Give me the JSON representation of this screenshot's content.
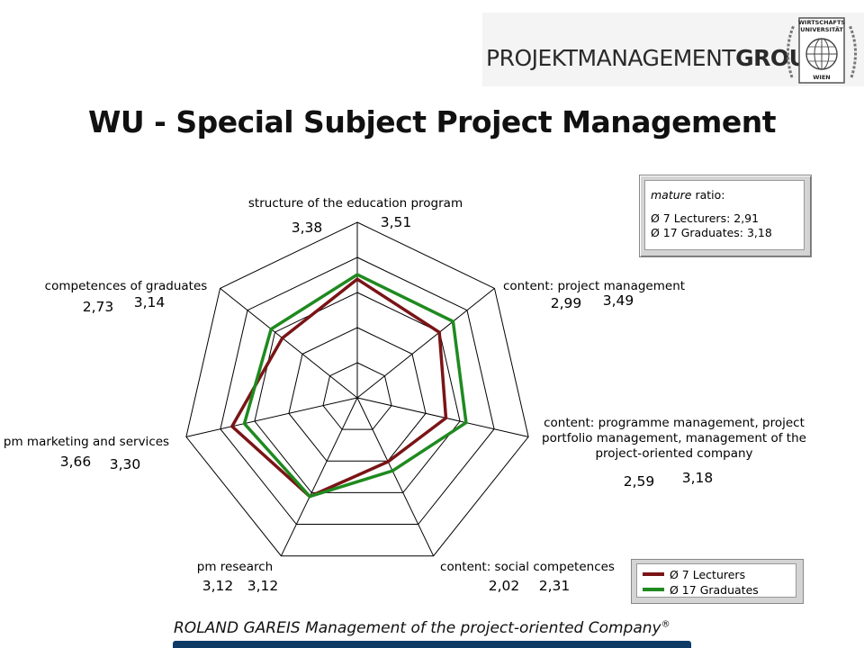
{
  "header": {
    "logo_text_regular": "PROJEKTMANAGEMENT",
    "logo_text_bold": "GROUP",
    "seal_top": "WIRTSCHAFTS",
    "seal_mid": "UNIVERSITÄT",
    "seal_bottom": "WIEN"
  },
  "title_part1": "WU - ",
  "title_part2": "Special Subject Project Management",
  "ratio_box": {
    "line1_italic": "mature",
    "line1_rest": " ratio:",
    "line2": "Ø 7 Lecturers: 2,91",
    "line3": "Ø 17 Graduates: 3,18"
  },
  "footer": {
    "text": "ROLAND GAREIS Management of the project-oriented Company",
    "mark": "®"
  },
  "chart_data": {
    "type": "radar",
    "scale": {
      "min": 0,
      "max": 5,
      "rings": 5
    },
    "axes": [
      {
        "label_lines": [
          "structure of the education program"
        ],
        "lecturers_label": "3,38",
        "graduates_label": "3,51"
      },
      {
        "label_lines": [
          "content: project management"
        ],
        "lecturers_label": "2,99",
        "graduates_label": "3,49"
      },
      {
        "label_lines": [
          "content: programme management, project",
          "portfolio management, management of the",
          "project-oriented company"
        ],
        "lecturers_label": "2,59",
        "graduates_label": "3,18"
      },
      {
        "label_lines": [
          "content: social competences"
        ],
        "lecturers_label": "2,02",
        "graduates_label": "2,31"
      },
      {
        "label_lines": [
          "pm research"
        ],
        "lecturers_label": "3,12",
        "graduates_label": "3,12"
      },
      {
        "label_lines": [
          "pm marketing and services"
        ],
        "lecturers_label": "3,66",
        "graduates_label": "3,30"
      },
      {
        "label_lines": [
          "competences of graduates"
        ],
        "lecturers_label": "2,73",
        "graduates_label": "3,14"
      }
    ],
    "series": [
      {
        "name": "Ø 7 Lecturers",
        "color": "#7a1416",
        "values": [
          3.38,
          2.99,
          2.59,
          2.02,
          3.12,
          3.66,
          2.73
        ]
      },
      {
        "name": "Ø 17 Graduates",
        "color": "#1f8a1f",
        "values": [
          3.51,
          3.49,
          3.18,
          2.31,
          3.12,
          3.3,
          3.14
        ]
      }
    ]
  }
}
